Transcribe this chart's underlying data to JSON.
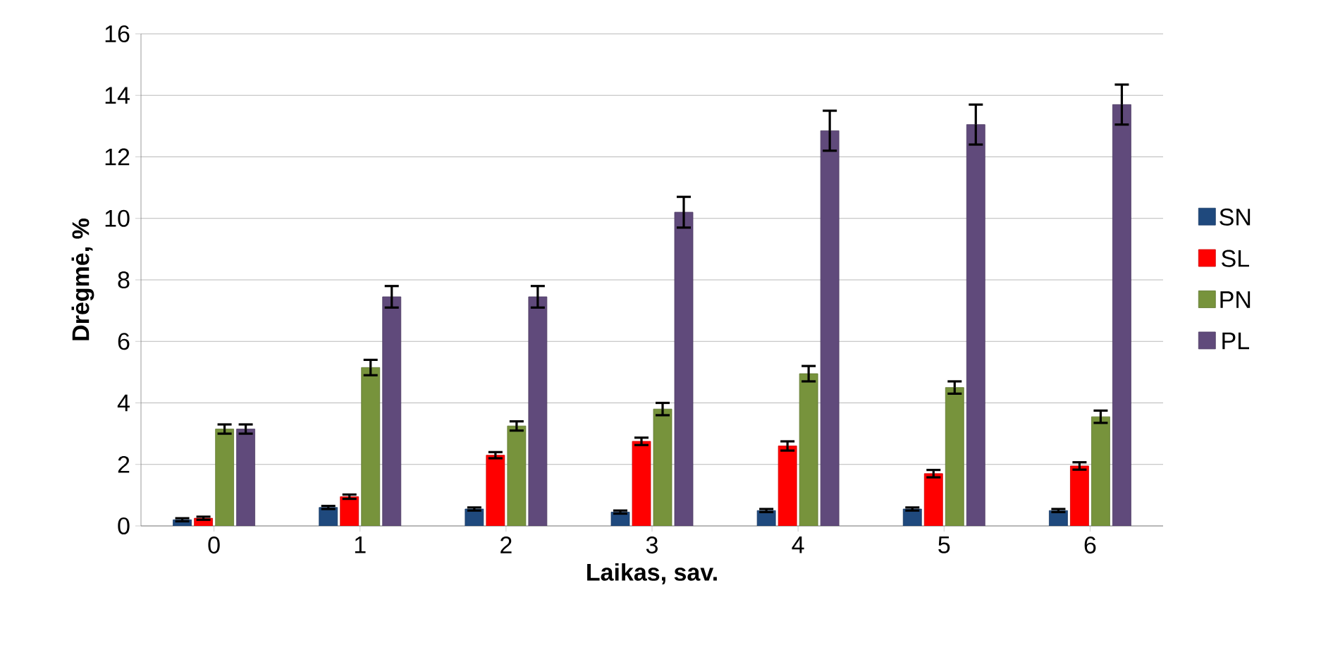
{
  "chart_data": {
    "type": "bar",
    "xlabel": "Laikas, sav.",
    "ylabel": "Drėgmė, %",
    "categories": [
      "0",
      "1",
      "2",
      "3",
      "4",
      "5",
      "6"
    ],
    "series": [
      {
        "name": "SN",
        "color": "#1f497d",
        "values": [
          0.2,
          0.6,
          0.55,
          0.45,
          0.5,
          0.55,
          0.5
        ],
        "errors": [
          0.05,
          0.05,
          0.05,
          0.05,
          0.05,
          0.05,
          0.05
        ]
      },
      {
        "name": "SL",
        "color": "#ff0000",
        "values": [
          0.25,
          0.95,
          2.3,
          2.75,
          2.6,
          1.7,
          1.95
        ],
        "errors": [
          0.05,
          0.07,
          0.1,
          0.12,
          0.15,
          0.12,
          0.12
        ]
      },
      {
        "name": "PN",
        "color": "#77933c",
        "values": [
          3.15,
          5.15,
          3.25,
          3.8,
          4.95,
          4.5,
          3.55
        ],
        "errors": [
          0.15,
          0.25,
          0.15,
          0.2,
          0.25,
          0.2,
          0.2
        ]
      },
      {
        "name": "PL",
        "color": "#604a7b",
        "values": [
          3.15,
          7.45,
          7.45,
          10.2,
          12.85,
          13.05,
          13.7
        ],
        "errors": [
          0.15,
          0.35,
          0.35,
          0.5,
          0.65,
          0.65,
          0.65
        ]
      }
    ],
    "ylim": [
      0,
      16
    ],
    "yticks": [
      0,
      2,
      4,
      6,
      8,
      10,
      12,
      14,
      16
    ],
    "grid": "y",
    "legend": "right"
  }
}
